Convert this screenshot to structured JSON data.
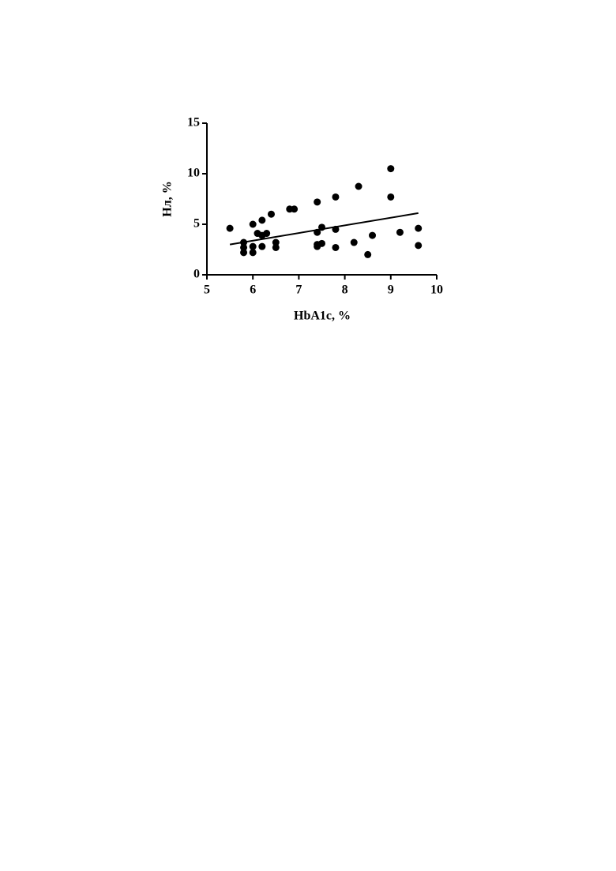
{
  "chart_data": {
    "type": "scatter",
    "x_label": "HbA1c, %",
    "y_label": "Нл, %",
    "xlim": [
      5,
      10
    ],
    "xticks": [
      5,
      6,
      7,
      8,
      9,
      10
    ],
    "ylim": [
      0,
      15
    ],
    "yticks": [
      0,
      5,
      10,
      15
    ],
    "color": "#000000",
    "x": [
      5.5,
      5.8,
      5.8,
      5.8,
      6.0,
      6.0,
      6.0,
      6.1,
      6.2,
      6.2,
      6.2,
      6.3,
      6.4,
      6.5,
      6.5,
      6.8,
      6.9,
      7.4,
      7.4,
      7.4,
      7.4,
      7.5,
      7.5,
      7.8,
      7.8,
      7.8,
      8.2,
      8.3,
      8.5,
      8.6,
      9.0,
      9.0,
      9.2,
      9.6,
      9.6
    ],
    "values": [
      4.6,
      3.2,
      2.7,
      2.2,
      5.0,
      2.8,
      2.2,
      4.1,
      5.4,
      3.9,
      2.8,
      4.1,
      6.0,
      3.2,
      2.7,
      6.5,
      6.5,
      7.2,
      4.2,
      3.0,
      2.8,
      4.7,
      3.1,
      7.7,
      4.5,
      2.7,
      3.2,
      8.75,
      2.0,
      3.9,
      10.5,
      7.7,
      4.2,
      4.6,
      2.9
    ],
    "trend_line": {
      "x": [
        5.5,
        9.6
      ],
      "values": [
        3.0,
        6.1
      ]
    }
  }
}
